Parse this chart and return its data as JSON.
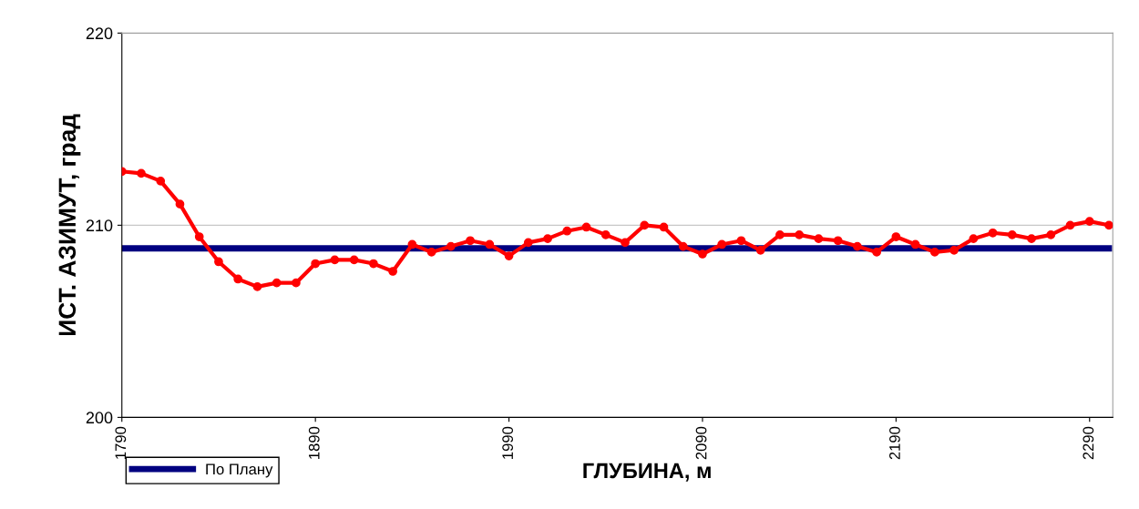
{
  "chart_data": {
    "type": "line",
    "xlabel": "ГЛУБИНА, м",
    "ylabel": "ИСТ. АЗИМУТ, град",
    "xlim": [
      1790,
      2302
    ],
    "xticks": [
      1790,
      1890,
      1990,
      2090,
      2190,
      2290
    ],
    "ylim": [
      200,
      220
    ],
    "yticks": [
      200,
      210,
      220
    ],
    "grid": "y",
    "legend": "bottom left",
    "series": [
      {
        "color": "#ff0000",
        "marker": "circle",
        "x": [
          1790,
          1800,
          1810,
          1820,
          1830,
          1840,
          1850,
          1860,
          1870,
          1880,
          1890,
          1900,
          1910,
          1920,
          1930,
          1940,
          1950,
          1960,
          1970,
          1980,
          1990,
          2000,
          2010,
          2020,
          2030,
          2040,
          2050,
          2060,
          2070,
          2080,
          2090,
          2100,
          2110,
          2120,
          2130,
          2140,
          2150,
          2160,
          2170,
          2180,
          2190,
          2200,
          2210,
          2220,
          2230,
          2240,
          2250,
          2260,
          2270,
          2280,
          2290,
          2300
        ],
        "values": [
          212.8,
          212.7,
          212.3,
          211.1,
          209.4,
          208.1,
          207.2,
          206.8,
          207.0,
          207.0,
          208.0,
          208.2,
          208.2,
          208.0,
          207.6,
          209.0,
          208.6,
          208.9,
          209.2,
          209.0,
          208.4,
          209.1,
          209.3,
          209.7,
          209.9,
          209.5,
          209.1,
          210.0,
          209.9,
          208.9,
          208.5,
          209.0,
          209.2,
          208.7,
          209.5,
          209.5,
          209.3,
          209.2,
          208.9,
          208.6,
          209.4,
          209.0,
          208.6,
          208.7,
          209.3,
          209.6,
          209.5,
          209.3,
          209.5,
          210.0,
          210.2,
          210.0
        ]
      },
      {
        "name": "По Плану",
        "color": "#000080",
        "marker": "none",
        "x": [
          1790,
          2300
        ],
        "values": [
          208.8,
          208.8
        ]
      }
    ]
  }
}
